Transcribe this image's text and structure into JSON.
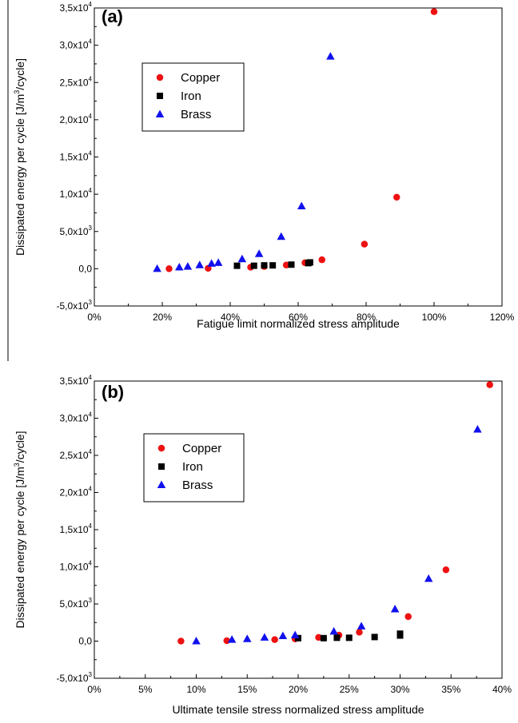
{
  "chart_data": [
    {
      "type": "scatter",
      "panel_label": "(a)",
      "xlabel": "Fatigue limit normalized stress amplitude",
      "ylabel_parts": [
        "Dissipated energy per cycle [J/m",
        "3",
        "/cycle]"
      ],
      "xlim": [
        0,
        1.2
      ],
      "ylim": [
        -5000,
        35000
      ],
      "x_ticks": [
        {
          "v": 0.0,
          "label": "0%"
        },
        {
          "v": 0.2,
          "label": "20%"
        },
        {
          "v": 0.4,
          "label": "40%"
        },
        {
          "v": 0.6,
          "label": "60%"
        },
        {
          "v": 0.8,
          "label": "80%"
        },
        {
          "v": 1.0,
          "label": "100%"
        },
        {
          "v": 1.2,
          "label": "120%"
        }
      ],
      "y_ticks": [
        {
          "v": -5000,
          "mant": "-5,0x10",
          "exp": "3"
        },
        {
          "v": 0,
          "mant": "0,0",
          "exp": ""
        },
        {
          "v": 5000,
          "mant": "5,0x10",
          "exp": "3"
        },
        {
          "v": 10000,
          "mant": "1,0x10",
          "exp": "4"
        },
        {
          "v": 15000,
          "mant": "1,5x10",
          "exp": "4"
        },
        {
          "v": 20000,
          "mant": "2,0x10",
          "exp": "4"
        },
        {
          "v": 25000,
          "mant": "2,5x10",
          "exp": "4"
        },
        {
          "v": 30000,
          "mant": "3,0x10",
          "exp": "4"
        },
        {
          "v": 35000,
          "mant": "3,5x10",
          "exp": "4"
        }
      ],
      "grid": false,
      "legend_position": "upper-left",
      "series": [
        {
          "name": "Copper",
          "marker": "circle",
          "color": "#ee1111",
          "x": [
            0.22,
            0.335,
            0.46,
            0.5,
            0.565,
            0.62,
            0.67,
            0.795,
            0.89,
            1.0
          ],
          "y": [
            0,
            50,
            200,
            300,
            500,
            800,
            1200,
            3300,
            9600,
            34500
          ]
        },
        {
          "name": "Iron",
          "marker": "square",
          "color": "#000000",
          "x": [
            0.42,
            0.47,
            0.5,
            0.525,
            0.58,
            0.63,
            0.635
          ],
          "y": [
            400,
            400,
            450,
            450,
            550,
            750,
            850
          ]
        },
        {
          "name": "Brass",
          "marker": "triangle",
          "color": "#1111ee",
          "x": [
            0.185,
            0.25,
            0.275,
            0.31,
            0.345,
            0.365,
            0.435,
            0.485,
            0.55,
            0.61,
            0.695
          ],
          "y": [
            0,
            200,
            300,
            500,
            700,
            800,
            1300,
            2000,
            4300,
            8400,
            28500
          ]
        }
      ]
    },
    {
      "type": "scatter",
      "panel_label": "(b)",
      "xlabel": "Ultimate tensile stress normalized stress amplitude",
      "ylabel_parts": [
        "Dissipated energy per cycle [J/m",
        "3",
        "/cycle]"
      ],
      "xlim": [
        0,
        0.4
      ],
      "ylim": [
        -5000,
        35000
      ],
      "x_ticks": [
        {
          "v": 0.0,
          "label": "0%"
        },
        {
          "v": 0.05,
          "label": "5%"
        },
        {
          "v": 0.1,
          "label": "10%"
        },
        {
          "v": 0.15,
          "label": "15%"
        },
        {
          "v": 0.2,
          "label": "20%"
        },
        {
          "v": 0.25,
          "label": "25%"
        },
        {
          "v": 0.3,
          "label": "30%"
        },
        {
          "v": 0.35,
          "label": "35%"
        },
        {
          "v": 0.4,
          "label": "40%"
        }
      ],
      "y_ticks": [
        {
          "v": -5000,
          "mant": "-5,0x10",
          "exp": "3"
        },
        {
          "v": 0,
          "mant": "0,0",
          "exp": ""
        },
        {
          "v": 5000,
          "mant": "5,0x10",
          "exp": "3"
        },
        {
          "v": 10000,
          "mant": "1,0x10",
          "exp": "4"
        },
        {
          "v": 15000,
          "mant": "1,5x10",
          "exp": "4"
        },
        {
          "v": 20000,
          "mant": "2,0x10",
          "exp": "4"
        },
        {
          "v": 25000,
          "mant": "2,5x10",
          "exp": "4"
        },
        {
          "v": 30000,
          "mant": "3,0x10",
          "exp": "4"
        },
        {
          "v": 35000,
          "mant": "3,5x10",
          "exp": "4"
        }
      ],
      "grid": false,
      "legend_position": "upper-left",
      "series": [
        {
          "name": "Copper",
          "marker": "circle",
          "color": "#ee1111",
          "x": [
            0.085,
            0.13,
            0.177,
            0.197,
            0.22,
            0.24,
            0.26,
            0.308,
            0.345,
            0.388
          ],
          "y": [
            0,
            50,
            200,
            300,
            500,
            800,
            1200,
            3300,
            9600,
            34500
          ]
        },
        {
          "name": "Iron",
          "marker": "square",
          "color": "#000000",
          "x": [
            0.2,
            0.225,
            0.238,
            0.25,
            0.275,
            0.3,
            0.3
          ],
          "y": [
            400,
            400,
            450,
            450,
            550,
            750,
            1000
          ]
        },
        {
          "name": "Brass",
          "marker": "triangle",
          "color": "#1111ee",
          "x": [
            0.1,
            0.135,
            0.15,
            0.167,
            0.185,
            0.197,
            0.235,
            0.262,
            0.295,
            0.328,
            0.376
          ],
          "y": [
            0,
            200,
            300,
            500,
            700,
            800,
            1300,
            2000,
            4300,
            8400,
            28500
          ]
        }
      ]
    }
  ]
}
